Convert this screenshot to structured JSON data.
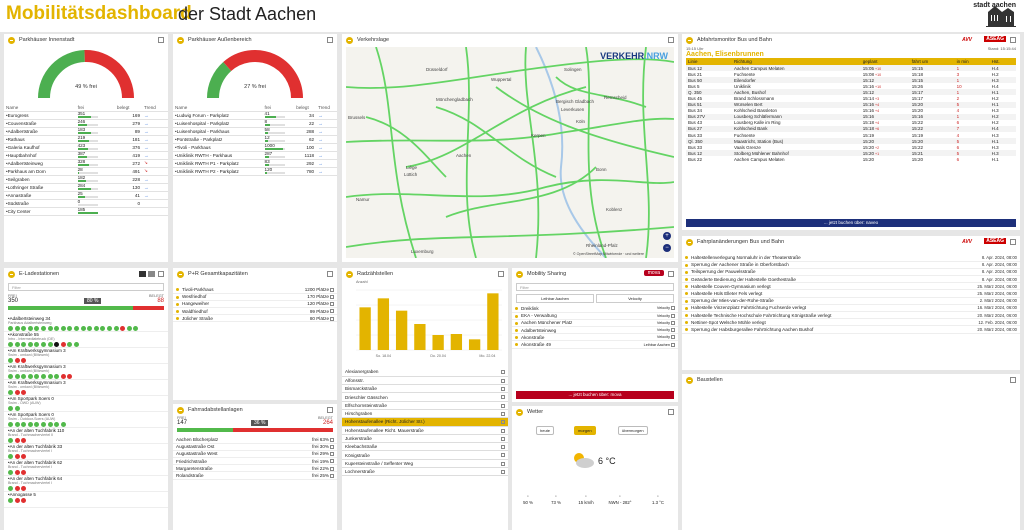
{
  "header": {
    "title_bold": "Mobilitätsdashboard",
    "title_rest": " der Stadt Aachen",
    "logo": "stadt aachen"
  },
  "colors": {
    "accent": "#e3b400",
    "free_green": "#4caf50",
    "occupied_red": "#e03030",
    "navy": "#1d2f7a",
    "dark_red": "#b7001d"
  },
  "inner": {
    "title": "Parkhäuser Innenstadt",
    "pct": "49 % frei",
    "pct_value": 0.49,
    "cols": {
      "name": "Name",
      "frei": "frei",
      "belegt": "belegt",
      "trend": "Trend"
    },
    "rows": [
      {
        "name": "Eurogress",
        "frei": "351",
        "belegt": "169",
        "trend": "→"
      },
      {
        "name": "Couvenstraße",
        "frei": "246",
        "belegt": "279",
        "trend": "→"
      },
      {
        "name": "Adalbertstraße",
        "frei": "183",
        "belegt": "89",
        "trend": "→"
      },
      {
        "name": "Rathaus",
        "frei": "219",
        "belegt": "181",
        "trend": "→"
      },
      {
        "name": "Galeria Kaufhof",
        "frei": "423",
        "belegt": "376",
        "trend": "→"
      },
      {
        "name": "Hauptbahnhof",
        "frei": "387",
        "belegt": "419",
        "trend": "→"
      },
      {
        "name": "Adalbertsteinweg",
        "frei": "328",
        "belegt": "272",
        "trend": "↘"
      },
      {
        "name": "Parkhaus am Dom",
        "frei": "28",
        "belegt": "491",
        "trend": "↘"
      },
      {
        "name": "Seilgraben",
        "frei": "182",
        "belegt": "228",
        "trend": "→"
      },
      {
        "name": "Lothringer Straße",
        "frei": "284",
        "belegt": "130",
        "trend": "→"
      },
      {
        "name": "Annastraße",
        "frei": "25",
        "belegt": "41",
        "trend": "→"
      },
      {
        "name": "Südstraße",
        "frei": "0",
        "belegt": "0",
        "trend": ""
      },
      {
        "name": "City Center",
        "frei": "185",
        "belegt": "",
        "trend": ""
      }
    ]
  },
  "outer": {
    "title": "Parkhäuser Außenbereich",
    "pct": "27 % frei",
    "pct_value": 0.27,
    "cols": {
      "name": "Name",
      "frei": "frei",
      "belegt": "belegt",
      "trend": "Trend"
    },
    "rows": [
      {
        "name": "Ludwig Forum - Parkplatz",
        "frei": "41",
        "belegt": "34",
        "trend": "→"
      },
      {
        "name": "Luisenhospital - Parkplatz",
        "frei": "8",
        "belegt": "22",
        "trend": "→"
      },
      {
        "name": "Luisenhospital - Parkhaus",
        "frei": "58",
        "belegt": "288",
        "trend": "→"
      },
      {
        "name": "Pontstraße - Parkplatz",
        "frei": "12",
        "belegt": "62",
        "trend": "→"
      },
      {
        "name": "Tivoli - Parkhaus",
        "frei": "1000",
        "belegt": "100",
        "trend": "→"
      },
      {
        "name": "Uniklinik RWTH - Parkhaus",
        "frei": "287",
        "belegt": "1118",
        "trend": "→"
      },
      {
        "name": "Uniklinik RWTH P1 - Parkplatz",
        "frei": "83",
        "belegt": "292",
        "trend": "→"
      },
      {
        "name": "Uniklinik RWTH P2 - Parkplatz",
        "frei": "120",
        "belegt": "780",
        "trend": "→"
      }
    ]
  },
  "map": {
    "title": "Verkehrslage",
    "brand_a": "VERKEHR",
    "brand_b": ".NRW",
    "labels": [
      "Düsseldorf",
      "Wuppertal",
      "Solingen",
      "Mönchengladbach",
      "Remscheid",
      "Bergisch Gladbach",
      "Köln",
      "Brussels",
      "Kerpen",
      "Leverkusen",
      "Liège",
      "Lüttich",
      "Aachen",
      "Bonn",
      "Namur",
      "Luxemburg",
      "Koblenz",
      "Rheinland-Pfalz"
    ],
    "attribution": "© OpenStreetMap Mitwirkende · und weitere"
  },
  "departures": {
    "title": "Abfahrtsmonitor Bus und Bahn",
    "brand1": "AVV",
    "brand2": "ASEAG",
    "stop": "Aachen, Elisenbrunnen",
    "time": "15:15 Uhr",
    "stand": "Stand: 15:15:44",
    "cols": {
      "linie": "Linie",
      "richtung": "Richtung",
      "geplant": "geplant",
      "fahrt": "fährt um",
      "inmin": "in min",
      "hst": "Hst."
    },
    "rows": [
      {
        "linie": "Bus 12",
        "richtung": "Aachen Campus Melaten",
        "geplant": "15:05",
        "delay": "+10",
        "fahrt": "15:15",
        "min": "1",
        "hst": "H.4"
      },
      {
        "linie": "Bus 21",
        "richtung": "Fuchsente",
        "geplant": "15:08",
        "delay": "+10",
        "fahrt": "15:18",
        "min": "3",
        "hst": "H.2"
      },
      {
        "linie": "Bus 50",
        "richtung": "Eilendorfer",
        "geplant": "15:12",
        "delay": "",
        "fahrt": "15:15",
        "min": "1",
        "hst": "H.3"
      },
      {
        "linie": "Bus 5",
        "richtung": "Uniklinik",
        "geplant": "15:16",
        "delay": "+10",
        "fahrt": "15:26",
        "min": "10",
        "hst": "H.4"
      },
      {
        "linie": "Q. 350",
        "richtung": "Aachen, Bushof",
        "geplant": "15:12",
        "delay": "",
        "fahrt": "15:17",
        "min": "1",
        "hst": "H.1"
      },
      {
        "linie": "Bus 45",
        "richtung": "Brand Schlossmann",
        "geplant": "15:14",
        "delay": "+3",
        "fahrt": "15:17",
        "min": "2",
        "hst": "H.2"
      },
      {
        "linie": "Bus 51",
        "richtung": "Würselen Bert",
        "geplant": "15:16",
        "delay": "+4",
        "fahrt": "15:20",
        "min": "5",
        "hst": "H.1"
      },
      {
        "linie": "Bus 34",
        "richtung": "Kohlscheid Bassleton",
        "geplant": "15:16",
        "delay": "+4",
        "fahrt": "15:20",
        "min": "4",
        "hst": "H.3"
      },
      {
        "linie": "Bus 27V",
        "richtung": "Lousberg Schläfermann",
        "geplant": "15:16",
        "delay": "",
        "fahrt": "15:16",
        "min": "1",
        "hst": "H.2"
      },
      {
        "linie": "Bus 43",
        "richtung": "Lousberg Kalle im Ring",
        "geplant": "15:18",
        "delay": "+4",
        "fahrt": "15:22",
        "min": "6",
        "hst": "H.2"
      },
      {
        "linie": "Bus 27",
        "richtung": "Kohlscheid Bank",
        "geplant": "15:18",
        "delay": "+6",
        "fahrt": "15:22",
        "min": "7",
        "hst": "H.4"
      },
      {
        "linie": "Bus 33",
        "richtung": "Fuchsente",
        "geplant": "15:19",
        "delay": "",
        "fahrt": "15:19",
        "min": "4",
        "hst": "H.3"
      },
      {
        "linie": "Ql. 350",
        "richtung": "Maastricht, Station (Bus)",
        "geplant": "15:20",
        "delay": "",
        "fahrt": "15:20",
        "min": "5",
        "hst": "H.1"
      },
      {
        "linie": "Bus 33",
        "richtung": "Vaals Grenze",
        "geplant": "15:20",
        "delay": "+2",
        "fahrt": "15:22",
        "min": "6",
        "hst": "H.3"
      },
      {
        "linie": "Bus 12",
        "richtung": "Stolberg Mühlener Bahnhof",
        "geplant": "15:20",
        "delay": "+1",
        "fahrt": "15:21",
        "min": "5",
        "hst": "H.3"
      },
      {
        "linie": "Bus 22",
        "richtung": "Aachen Campus Melaten",
        "geplant": "15:20",
        "delay": "",
        "fahrt": "15:20",
        "min": "6",
        "hst": "H.1"
      }
    ],
    "button": "... jetzt buchen über: naveo"
  },
  "changes": {
    "title": "Fahrplanänderungen Bus und Bahn",
    "brand1": "AVV",
    "brand2": "ASEAG",
    "rows": [
      {
        "text": "Haltestellenverlegung Normaluhr in der Theaterstraße",
        "date": "8. Apr. 2024, 08:00"
      },
      {
        "text": "Sperrung der Aachener Straße in Oberforstbach",
        "date": "8. Apr. 2024, 08:00"
      },
      {
        "text": "Teilsperrung der Pauwelsstraße",
        "date": "8. Apr. 2024, 08:00"
      },
      {
        "text": "Geänderte Bedienung der Haltestelle Goethestraße",
        "date": "8. Apr. 2024, 08:00"
      },
      {
        "text": "Haltestelle Couven-Gymnasium verlegt",
        "date": "25. März 2024, 06:00"
      },
      {
        "text": "Haltestelle Hüls Elleter Fels verlegt",
        "date": "25. März 2024, 06:00"
      },
      {
        "text": "Sperrung der Mies-van-der-Rohe-Straße",
        "date": "2. März 2024, 06:00"
      },
      {
        "text": "Haltestelle Vinzenzplatz Fahrtrichtung Fuchserde verlegt",
        "date": "16. März 2024, 06:00"
      },
      {
        "text": "Haltestelle Technische Hochschule Fahrtrichtung Königstraße verlegt",
        "date": "20. März 2024, 06:00"
      },
      {
        "text": "Nettiner-Spot Welsche Mühle verlegt",
        "date": "12. Feb. 2024, 06:00"
      },
      {
        "text": "Sperrung der Habsburgerallee Fahrtrichtung Aachen Bushof",
        "date": "20. März 2024, 08:00"
      }
    ]
  },
  "baustellen": {
    "title": "Baustellen"
  },
  "charging": {
    "title": "E-Ladestationen",
    "filter": "Filter",
    "frei_label": "FREI",
    "frei": "350",
    "belegt_label": "BELEGT",
    "belegt": "88",
    "pct": "80 %",
    "pct_value": 0.8,
    "stations": [
      {
        "name": "Adalbertsteinweg 34",
        "sub": "Parkhaus Adalbertsteinweg",
        "dots": "gggggggggggggggggrgg"
      },
      {
        "name": "Akonstraße 55",
        "sub": "Intro - Intermediatetruck (DE)",
        "dots": "gggggggkrgg"
      },
      {
        "name": "Am Kraftwerksgymnasium 3",
        "sub": "Swim - omkanl (Blitzwerk)",
        "dots": "grr"
      },
      {
        "name": "Am Kraftwerksgymnasium 3",
        "sub": "Swim - omkanl (Blitzwerk)",
        "dots": "ggggggggrr"
      },
      {
        "name": "Am Kraftwerksgymnasium 3",
        "sub": "Swim - omkanl (Blitzwerk)",
        "dots": "grr"
      },
      {
        "name": "Am Sportpark Soers 0",
        "sub": "Swim - OWD (AUW)",
        "dots": "gg"
      },
      {
        "name": "Am Sportpark Soers 0",
        "sub": "Swim - Outdoor-Soers (AUW)",
        "dots": "ggggggggg"
      },
      {
        "name": "An der alten Tuchfabrik 110",
        "sub": "Brand - Tuchmacherviertel II",
        "dots": "grr"
      },
      {
        "name": "An der alten Tuchfabrik 33",
        "sub": "Brand - Tuchmacherviertel I",
        "dots": "grr"
      },
      {
        "name": "An der alten Tuchfabrik 62",
        "sub": "Brand - Tuchmacherviertel I",
        "dots": "grr"
      },
      {
        "name": "An der alten Tuchfabrik 64",
        "sub": "Brand - Tuchmacherviertel I",
        "dots": "grr"
      },
      {
        "name": "Annogasse 5",
        "sub": "",
        "dots": "grr"
      }
    ]
  },
  "pr": {
    "title": "P+R Gesamtkapazitäten",
    "rows": [
      {
        "name": "Tivoli-Parkhaus",
        "val": "1200 Plätze"
      },
      {
        "name": "Wesfriedhof",
        "val": "170 Plätze"
      },
      {
        "name": "Hangeweiher",
        "val": "120 Plätze"
      },
      {
        "name": "Waldfriedhof",
        "val": "99 Plätze"
      },
      {
        "name": "Jülicher Straße",
        "val": "80 Plätze"
      }
    ]
  },
  "bike": {
    "title": "Fahrradabstellanlagen",
    "frei_label": "FREI",
    "frei": "147",
    "belegt_label": "BELEGT",
    "belegt": "264",
    "pct": "36 %",
    "pct_value": 0.36,
    "rows": [
      {
        "name": "Aachen Blücherplatz",
        "val": "frei 63%"
      },
      {
        "name": "Augustastraße Ost",
        "val": "frei 30%"
      },
      {
        "name": "Augustastraße West",
        "val": "frei 29%"
      },
      {
        "name": "Friedrichstraße",
        "val": "frei 19%"
      },
      {
        "name": "Margaretenstraße",
        "val": "frei 22%"
      },
      {
        "name": "Rolandstraße",
        "val": "frei 25%"
      }
    ]
  },
  "counters": {
    "title": "Radzählstellen",
    "ylabel": "Anzahl",
    "chart_data": {
      "type": "bar",
      "categories": [
        "Mo. 15.04",
        "Di. 16.04",
        "Mi. 17.04",
        "Do. 18.04",
        "Fr. 19.04",
        "Sa. 20.04",
        "So. 21.04",
        "Mo. 22.04"
      ],
      "values": [
        128,
        155,
        118,
        78,
        45,
        48,
        32,
        170
      ],
      "xticks": [
        "So. 18.04",
        "Do. 20.04",
        "Mo. 22.04"
      ],
      "ylim": [
        0,
        180
      ]
    },
    "rows": [
      {
        "name": "Alexianergraben",
        "hl": false
      },
      {
        "name": "Alfonsstr.",
        "hl": false
      },
      {
        "name": "Bismarckstraße",
        "hl": false
      },
      {
        "name": "Drieschler Gässchen",
        "hl": false
      },
      {
        "name": "Elfschornsteinstraße",
        "hl": false
      },
      {
        "name": "Hirschgraben",
        "hl": false
      },
      {
        "name": "Hohenstaufenallee (Richt. Jülicher Str.)",
        "hl": true
      },
      {
        "name": "Hohenstaufenallee Richt. Mauerstraße",
        "hl": false
      },
      {
        "name": "Junkerstraße",
        "hl": false
      },
      {
        "name": "Kleebachstraße",
        "hl": false
      },
      {
        "name": "Königstraße",
        "hl": false
      },
      {
        "name": "Kupersteinstraße / Seffenter Weg",
        "hl": false
      },
      {
        "name": "Lochnerstraße",
        "hl": false
      }
    ]
  },
  "sharing": {
    "title": "Mobility Sharing",
    "brand": "mova",
    "filter": "Filter",
    "tab1": "Leihbar Aachen",
    "tab2": "Velocity",
    "rows": [
      {
        "name": "Dreiklink",
        "val": "Velocity"
      },
      {
        "name": "EKA - Verwaltung",
        "val": "Velocity"
      },
      {
        "name": "Aachen Münchener Platz",
        "val": "Velocity"
      },
      {
        "name": "Adalbertsteinweg",
        "val": "Velocity"
      },
      {
        "name": "Akonstraße",
        "val": "Velocity"
      },
      {
        "name": "Akonstraße 49",
        "val": "Leihbar Aachen"
      }
    ],
    "button": "... jetzt buchen über: mova"
  },
  "weather": {
    "title": "Wetter",
    "tabs": [
      "heute",
      "morgen",
      "übermorgen"
    ],
    "active": 1,
    "temp": "6 °C",
    "stats": [
      {
        "icon": "umbrella-icon",
        "val": "50 %"
      },
      {
        "icon": "humidity-icon",
        "val": "73 %"
      },
      {
        "icon": "wind-icon",
        "val": "15 km/h"
      },
      {
        "icon": "compass-icon",
        "val": "NWN - 282°"
      },
      {
        "icon": "uv-icon",
        "val": "1.3 °C"
      }
    ]
  }
}
